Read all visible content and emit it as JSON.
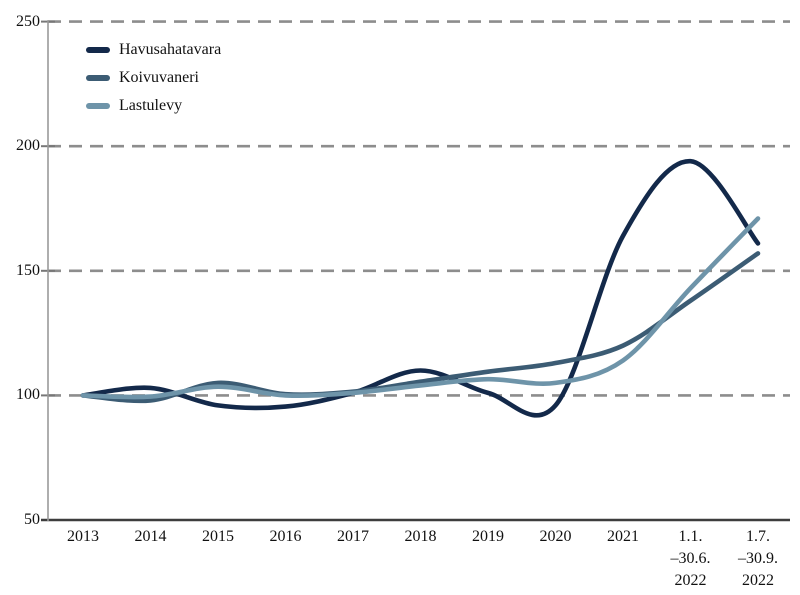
{
  "chart_data": {
    "type": "line",
    "title": "",
    "xlabel": "",
    "ylabel": "",
    "index_base": 100,
    "categories": [
      "2013",
      "2014",
      "2015",
      "2016",
      "2017",
      "2018",
      "2019",
      "2020",
      "2021",
      "1.1.\n–30.6.\n2022",
      "1.7.\n–30.9.\n2022"
    ],
    "series": [
      {
        "name": "Havusahatavara",
        "color": "#13294a",
        "values": [
          100,
          103,
          96,
          95.5,
          101,
          110,
          101,
          96,
          164,
          194,
          161
        ]
      },
      {
        "name": "Koivuvaneri",
        "color": "#3c5c74",
        "values": [
          100,
          98,
          105,
          100.5,
          101.5,
          105.5,
          109.5,
          113,
          120,
          138,
          157
        ]
      },
      {
        "name": "Lastulevy",
        "color": "#6e94a9",
        "values": [
          100,
          99.5,
          103.5,
          100,
          101,
          104,
          106.5,
          105,
          114,
          143,
          171
        ]
      }
    ],
    "yticks": [
      250,
      200,
      150,
      100,
      50
    ],
    "ylim": [
      50,
      250
    ],
    "grid": "horizontal-dashed",
    "grid_color": "#8d8d8d",
    "axis_color": "#3d3d3d",
    "legend_position": "top-left"
  }
}
